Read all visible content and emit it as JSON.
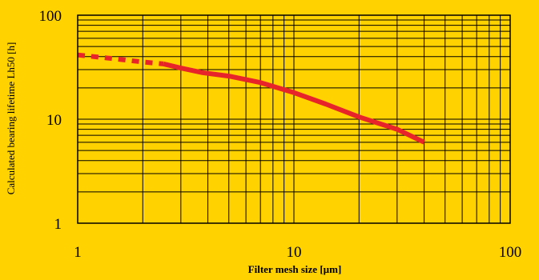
{
  "chart_data": {
    "type": "line",
    "x_scale": "log",
    "y_scale": "log",
    "xlim": [
      1,
      100
    ],
    "ylim": [
      1,
      100
    ],
    "xlabel": "Filter mesh size [µm]",
    "ylabel": "Calculated bearing lifetime Lh50 [h]",
    "x_ticks": [
      "1",
      "10",
      "100"
    ],
    "y_ticks": [
      "1",
      "10",
      "100"
    ],
    "grid": true,
    "colors": {
      "background": "#FFD200",
      "line": "#E8242B",
      "grid": "#000000"
    },
    "series": [
      {
        "style": "dashed",
        "points": [
          [
            1.0,
            41.5
          ],
          [
            1.5,
            38.0
          ],
          [
            2.0,
            35.5
          ],
          [
            2.5,
            34.0
          ]
        ]
      },
      {
        "style": "solid",
        "points": [
          [
            2.5,
            34.0
          ],
          [
            3.0,
            31.0
          ],
          [
            3.8,
            28.0
          ],
          [
            5.0,
            26.0
          ],
          [
            7.0,
            22.5
          ],
          [
            10.0,
            18.0
          ],
          [
            14.0,
            14.0
          ],
          [
            20.0,
            10.5
          ],
          [
            30.0,
            8.0
          ],
          [
            40.0,
            6.0
          ]
        ]
      }
    ]
  }
}
